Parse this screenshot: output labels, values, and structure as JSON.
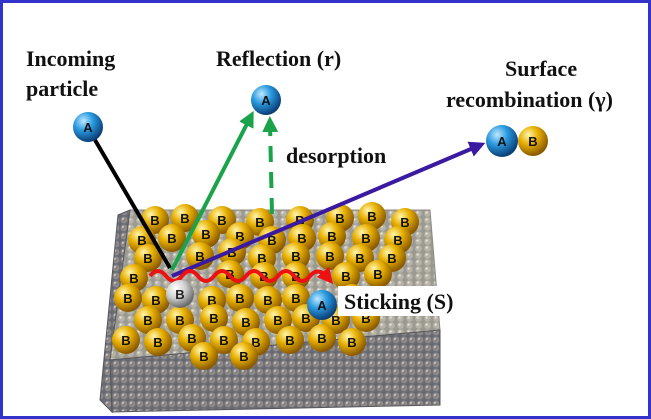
{
  "labels": {
    "incoming_line1": "Incoming",
    "incoming_line2": "particle",
    "reflection": "Reflection (r)",
    "recombination_line1": "Surface",
    "recombination_line2": "recombination (γ)",
    "desorption": "desorption",
    "sticking": "Sticking (S)"
  },
  "atoms": {
    "a_letter": "A",
    "b_letter": "B"
  },
  "colors": {
    "border": "#3333cc",
    "incoming_arrow": "#000000",
    "reflection_arrow": "#1aa34a",
    "recombination_arrow": "#3a1aa0",
    "diffusion_path": "#ee1111",
    "atom_a": "#1e8ac8",
    "atom_b": "#e0a800"
  }
}
